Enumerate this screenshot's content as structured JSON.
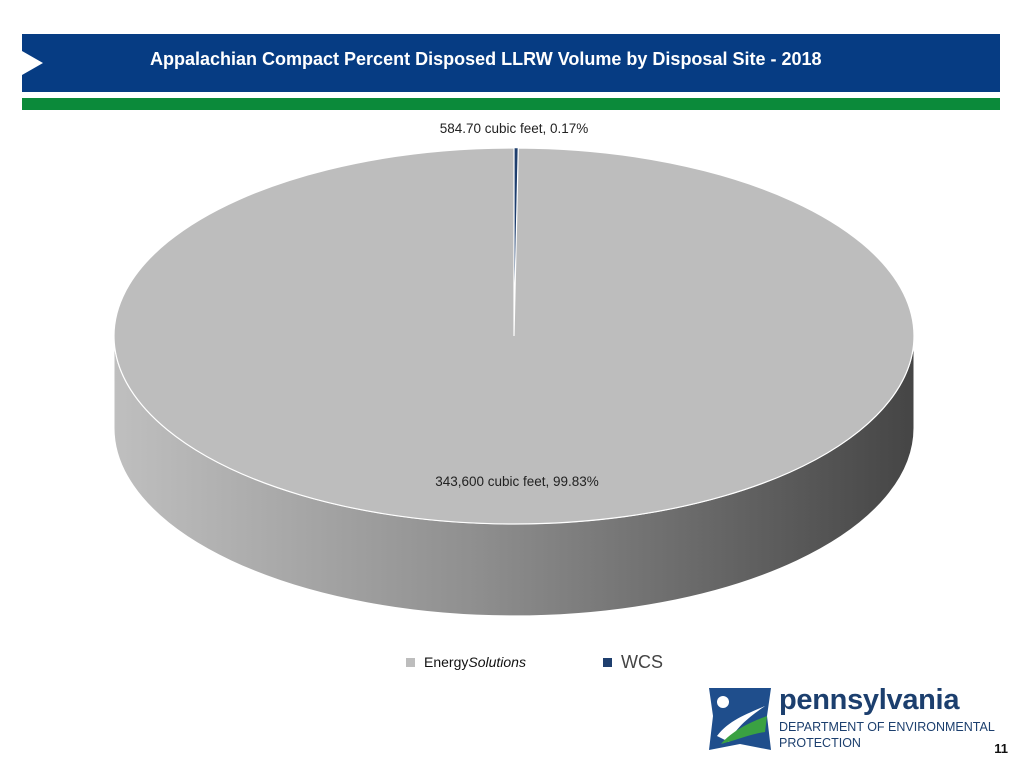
{
  "header": {
    "title": "Appalachian Compact Percent Disposed LLRW Volume by Disposal Site - 2018"
  },
  "chart_data": {
    "type": "pie",
    "style": "3d",
    "title": "Appalachian Compact Percent Disposed LLRW Volume by Disposal Site - 2018",
    "slices": [
      {
        "name": "EnergySolutions",
        "value": 343600,
        "percent": 99.83,
        "label": "343,600 cubic feet, 99.83%",
        "color": "#bdbdbd"
      },
      {
        "name": "WCS",
        "value": 584.7,
        "percent": 0.17,
        "label": "584.70 cubic feet, 0.17%",
        "color": "#1f3f6e"
      }
    ],
    "legend": {
      "position": "bottom",
      "items": [
        {
          "prefix": "Energy",
          "suffix": "Solutions",
          "color": "#bdbdbd"
        },
        {
          "prefix": "WCS",
          "suffix": "",
          "color": "#1f3f6e"
        }
      ]
    }
  },
  "logo": {
    "name": "pennsylvania",
    "line1": "DEPARTMENT OF ENVIRONMENTAL",
    "line2": "PROTECTION"
  },
  "page_number": "11",
  "colors": {
    "header_blue": "#063c83",
    "accent_green": "#0b8a3a"
  }
}
